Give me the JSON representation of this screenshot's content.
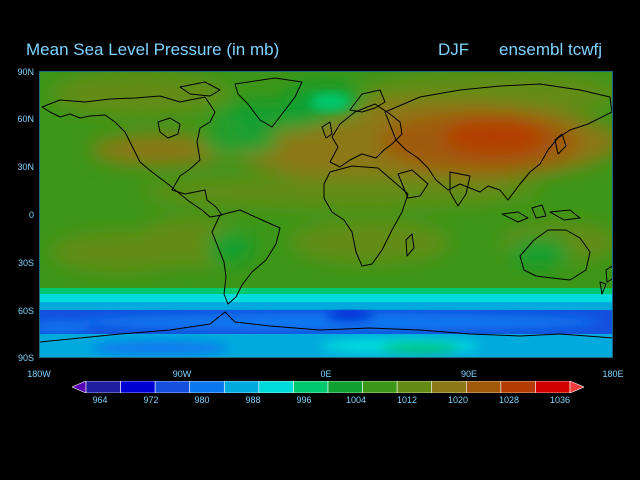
{
  "title": "Mean Sea Level Pressure (in mb)",
  "season": "DJF",
  "model": "ensembl tcwfj",
  "lat_labels": [
    "90N",
    "60N",
    "30N",
    "0",
    "30S",
    "60S",
    "90S"
  ],
  "lon_labels": [
    "180W",
    "90W",
    "0E",
    "90E",
    "180E"
  ],
  "colorbar": {
    "levels": [
      "964",
      "972",
      "980",
      "988",
      "996",
      "1004",
      "1012",
      "1020",
      "1028",
      "1036"
    ],
    "colors": [
      "#5a00b4",
      "#1e1ea0",
      "#0000d2",
      "#1450dc",
      "#0a78f0",
      "#00aadc",
      "#00dcdc",
      "#00c86e",
      "#10a030",
      "#3c9618",
      "#648c14",
      "#8c7814",
      "#a05a0a",
      "#b43c00",
      "#d20000",
      "#f03c3c"
    ]
  }
}
